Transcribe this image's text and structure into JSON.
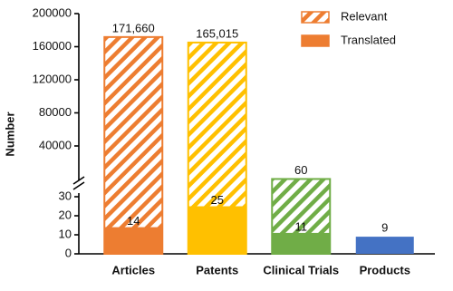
{
  "chart_data": {
    "type": "bar",
    "y_label": "Number",
    "categories": [
      "Articles",
      "Patents",
      "Clinical Trials",
      "Products"
    ],
    "colors": [
      "#ED7D31",
      "#FFC000",
      "#70AD47",
      "#4472C4"
    ],
    "series": [
      {
        "name": "Relevant",
        "style": "hatched",
        "values": [
          171660,
          165015,
          60,
          9
        ],
        "value_labels": [
          "171,660",
          "165,015",
          "60",
          "9"
        ]
      },
      {
        "name": "Translated",
        "style": "solid",
        "values": [
          14,
          25,
          11,
          9
        ]
      }
    ],
    "ylim": [
      0,
      30
    ],
    "yticks": [
      0,
      10,
      20,
      30
    ],
    "upper_ylim": [
      0,
      200000
    ],
    "upper_yticks": [
      40000,
      80000,
      120000,
      160000,
      200000
    ],
    "legend": "top-right"
  }
}
